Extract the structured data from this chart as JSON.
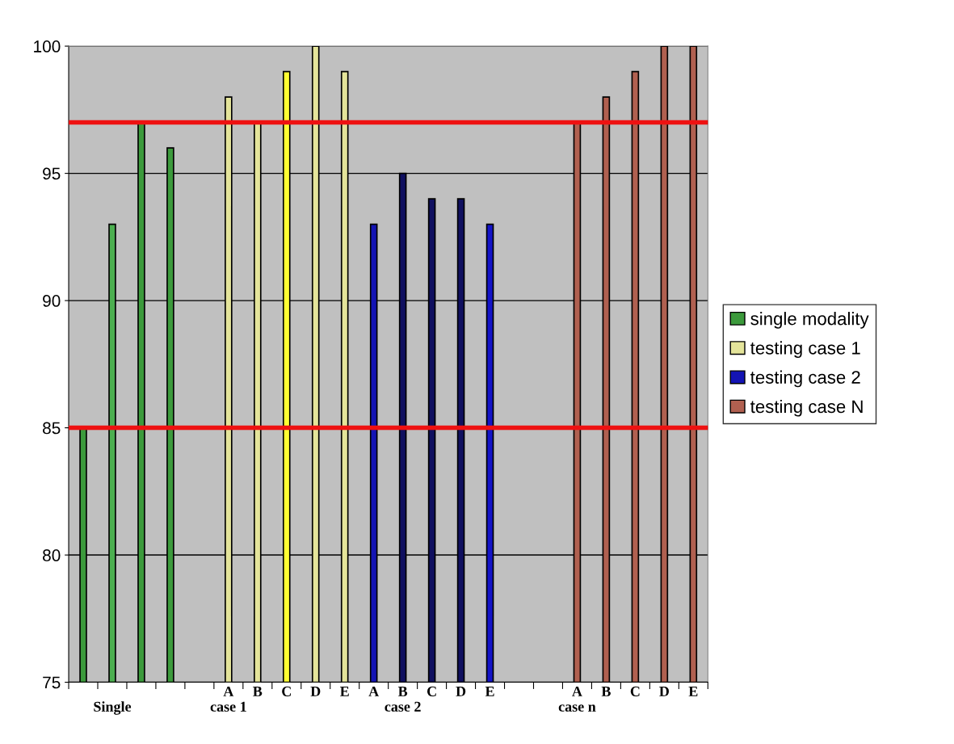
{
  "chart_data": {
    "type": "bar",
    "categories": [
      null,
      "\nSingle",
      null,
      null,
      null,
      "A\ncase 1",
      "B",
      "C",
      "D",
      "E",
      "A",
      "B\ncase 2",
      "C",
      "D",
      "E",
      null,
      null,
      "A\ncase n",
      "B",
      "C",
      "D",
      "E"
    ],
    "series": [
      {
        "name": "single modality",
        "color": "#3c9a3c",
        "colors": [
          "#3c9a3c",
          "#4caf50",
          "#3c9a3c",
          "#3c9a3c",
          null,
          null,
          null,
          null,
          null,
          null,
          null,
          null,
          null,
          null,
          null,
          null,
          null,
          null,
          null,
          null,
          null,
          null
        ],
        "values": [
          85,
          93,
          97,
          96,
          null,
          null,
          null,
          null,
          null,
          null,
          null,
          null,
          null,
          null,
          null,
          null,
          null,
          null,
          null,
          null,
          null,
          null
        ]
      },
      {
        "name": "testing case 1",
        "color": "#e4e49a",
        "colors": [
          null,
          null,
          null,
          null,
          null,
          "#e4e49a",
          "#e4e49a",
          "#ffff33",
          "#e4e49a",
          "#e4e49a",
          null,
          null,
          null,
          null,
          null,
          null,
          null,
          null,
          null,
          null,
          null,
          null
        ],
        "values": [
          null,
          null,
          null,
          null,
          null,
          98,
          97,
          99,
          100,
          99,
          null,
          null,
          null,
          null,
          null,
          null,
          null,
          null,
          null,
          null,
          null,
          null
        ]
      },
      {
        "name": "testing case 2",
        "color": "#1414b4",
        "colors": [
          null,
          null,
          null,
          null,
          null,
          null,
          null,
          null,
          null,
          null,
          "#1414b4",
          "#101060",
          "#101060",
          "#101060",
          "#1414c8",
          null,
          null,
          null,
          null,
          null,
          null,
          null
        ],
        "values": [
          null,
          null,
          null,
          null,
          null,
          null,
          null,
          null,
          null,
          null,
          93,
          95,
          94,
          94,
          93,
          null,
          null,
          null,
          null,
          null,
          null,
          null
        ]
      },
      {
        "name": "testing case N",
        "color": "#b06050",
        "colors": [
          null,
          null,
          null,
          null,
          null,
          null,
          null,
          null,
          null,
          null,
          null,
          null,
          null,
          null,
          null,
          null,
          null,
          "#b06050",
          "#b06050",
          "#b06050",
          "#b06050",
          "#b06050"
        ],
        "values": [
          null,
          null,
          null,
          null,
          null,
          null,
          null,
          null,
          null,
          null,
          null,
          null,
          null,
          null,
          null,
          null,
          null,
          97,
          98,
          99,
          100,
          100
        ]
      }
    ],
    "ylim": [
      75,
      100
    ],
    "yticks": [
      75,
      80,
      85,
      90,
      95,
      100
    ],
    "grid": "y",
    "legend": "right",
    "ref_lines": [
      {
        "axis": "y",
        "value": 97,
        "color": "#ee1111"
      },
      {
        "axis": "y",
        "value": 85,
        "color": "#ee1111"
      }
    ]
  }
}
